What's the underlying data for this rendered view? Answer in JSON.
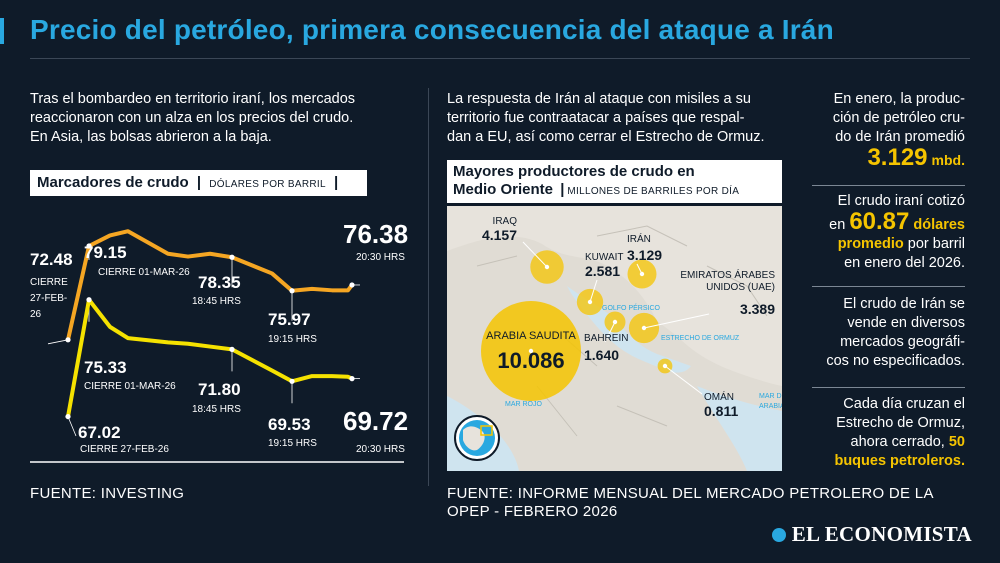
{
  "title": "Precio del petróleo, primera consecuencia del ataque a Irán",
  "left_intro": [
    "Tras el bombardeo en territorio iraní, los mercados",
    "reaccionaron con un alza en los precios del crudo.",
    "En Asia, las bolsas abrieron a la baja."
  ],
  "chart_header": {
    "title": "Marcadores de crudo",
    "subtitle": "DÓLARES POR BARRIL"
  },
  "chart_data": {
    "type": "line",
    "title": "Marcadores de crudo",
    "subtitle": "DÓLARES POR BARRIL",
    "series": [
      {
        "color": "#f5a623",
        "points": [
          72.48,
          79.15,
          79.9,
          80.2,
          78.6,
          78.4,
          78.6,
          78.35,
          77.2,
          75.97,
          76.1,
          76.0,
          76.0,
          76.38
        ],
        "labels": [
          {
            "i": 0,
            "value": "72.48",
            "note": [
              "CIERRE",
              "27-FEB-",
              "26"
            ]
          },
          {
            "i": 1,
            "value": "79.15",
            "note": [
              "CIERRE 01-MAR-26"
            ]
          },
          {
            "i": 7,
            "value": "78.35",
            "note": [
              "18:45 HRS"
            ]
          },
          {
            "i": 9,
            "value": "75.97",
            "note": [
              "19:15 HRS"
            ]
          },
          {
            "i": 13,
            "value": "76.38",
            "note": [
              "20:30 HRS"
            ]
          }
        ]
      },
      {
        "color": "#f5e200",
        "points": [
          67.02,
          75.33,
          73.4,
          72.6,
          72.3,
          72.2,
          72.0,
          71.8,
          70.3,
          69.53,
          69.9,
          69.9,
          69.85,
          69.72
        ],
        "labels": [
          {
            "i": 0,
            "value": "67.02",
            "note": [
              "CIERRE 27-FEB-26"
            ]
          },
          {
            "i": 1,
            "value": "75.33",
            "note": [
              "CIERRE 01-MAR-26"
            ]
          },
          {
            "i": 7,
            "value": "71.80",
            "note": [
              "18:45 HRS"
            ]
          },
          {
            "i": 9,
            "value": "69.53",
            "note": [
              "19:15 HRS"
            ]
          },
          {
            "i": 13,
            "value": "69.72",
            "note": [
              "20:30 HRS"
            ]
          }
        ]
      }
    ]
  },
  "left_source": "FUENTE: INVESTING",
  "middle_intro": [
    "La respuesta de Irán al ataque con misiles a su",
    "territorio fue contraatacar a países que respal-",
    "dan a EU, así como cerrar el Estrecho de Ormuz."
  ],
  "map_header": {
    "line1": "Mayores productores de crudo en",
    "line2": "Medio Oriente",
    "subtitle": "MILLONES DE BARRILES POR DÍA"
  },
  "map_data": {
    "type": "bubble-map",
    "producers": [
      {
        "name": "ARABIA SAUDITA",
        "value": 10.086,
        "label": "10.086"
      },
      {
        "name": "IRAQ",
        "value": 4.157,
        "label": "4.157"
      },
      {
        "name": "IRÁN",
        "value": 3.129,
        "label": "3.129"
      },
      {
        "name": "EMIRATOS ÁRABES UNIDOS (UAE)",
        "lines": [
          "EMIRATOS ÁRABES",
          "UNIDOS (UAE)"
        ],
        "value": 3.389,
        "label": "3.389"
      },
      {
        "name": "KUWAIT",
        "value": 2.581,
        "label": "2.581"
      },
      {
        "name": "BAHREIN",
        "value": 1.64,
        "label": "1.640"
      },
      {
        "name": "OMÁN",
        "value": 0.811,
        "label": "0.811"
      }
    ],
    "water_labels": {
      "golfo": "GOLFO PÉRSICO",
      "ormuz": "ESTRECHO DE ORMUZ",
      "rojo": "MAR ROJO",
      "arabia": [
        "MAR DE",
        "ARABIA"
      ]
    }
  },
  "middle_source": [
    "FUENTE: INFORME MENSUAL DEL MERCADO PETROLERO DE LA",
    "OPEP - FEBRERO 2026"
  ],
  "facts": {
    "f1": {
      "l1": "En enero, la produc-",
      "l2": "ción de petróleo cru-",
      "l3": "do de Irán promedió",
      "num": "3.129",
      "unit": "mbd."
    },
    "f2": {
      "l1": "El crudo iraní cotizó",
      "pre": "en",
      "num": "60.87",
      "tail": "dólares",
      "l3a": "promedio",
      "l3b": "por barril",
      "l4": "en enero del 2026."
    },
    "f3": {
      "l1": "El crudo de Irán se",
      "l2": "vende en diversos",
      "l3": "mercados geográfi-",
      "l4": "cos no especificados."
    },
    "f4": {
      "l1": "Cada día cruzan el",
      "l2": "Estrecho de Ormuz,",
      "l3": "ahora cerrado,",
      "l3b": "50",
      "l4": "buques petroleros."
    }
  },
  "brand": "EL ECONOMISTA"
}
